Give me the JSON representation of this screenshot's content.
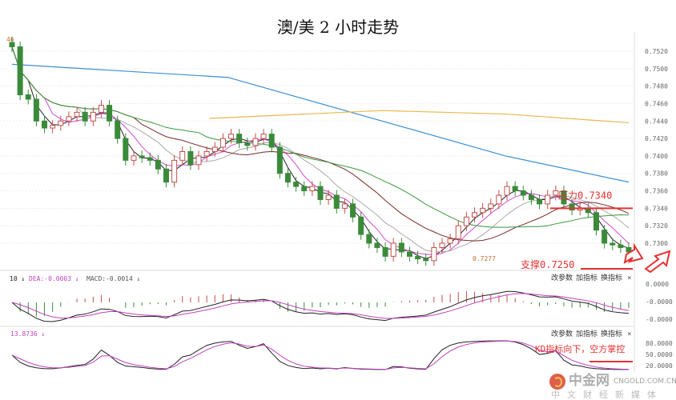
{
  "title": "澳/美 2 小时走势",
  "chart_data": {
    "type": "candlestick",
    "title": "澳/美 2 小时走势",
    "ylim": [
      0.728,
      0.753
    ],
    "y_ticks": [
      "0.7520",
      "0.7500",
      "0.7480",
      "0.7460",
      "0.7440",
      "0.7420",
      "0.7400",
      "0.7380",
      "0.7360",
      "0.7340",
      "0.7320",
      "0.7300"
    ],
    "first_label": "46",
    "low_label": "0.7277",
    "closes": [
      0.7525,
      0.747,
      0.7465,
      0.744,
      0.7432,
      0.7435,
      0.744,
      0.7445,
      0.745,
      0.744,
      0.745,
      0.7458,
      0.744,
      0.742,
      0.7395,
      0.74,
      0.7398,
      0.7395,
      0.7385,
      0.737,
      0.7395,
      0.7405,
      0.739,
      0.74,
      0.7405,
      0.741,
      0.742,
      0.7425,
      0.7415,
      0.7412,
      0.742,
      0.7425,
      0.741,
      0.738,
      0.737,
      0.7365,
      0.736,
      0.7365,
      0.735,
      0.7355,
      0.734,
      0.7345,
      0.733,
      0.731,
      0.73,
      0.7295,
      0.7285,
      0.73,
      0.729,
      0.7285,
      0.7282,
      0.728,
      0.7295,
      0.73,
      0.7305,
      0.732,
      0.733,
      0.7335,
      0.734,
      0.7345,
      0.7355,
      0.7365,
      0.736,
      0.7355,
      0.735,
      0.7345,
      0.7355,
      0.736,
      0.7345,
      0.7338,
      0.734,
      0.7335,
      0.7315,
      0.73,
      0.7298,
      0.7295,
      0.729
    ],
    "ma_long_blue": [
      [
        0,
        0.7505
      ],
      [
        0.35,
        0.749
      ],
      [
        0.6,
        0.744
      ],
      [
        0.8,
        0.74
      ],
      [
        1,
        0.737
      ]
    ],
    "ma_long_yellow": [
      [
        0.32,
        0.7443
      ],
      [
        0.6,
        0.7452
      ],
      [
        0.8,
        0.7448
      ],
      [
        1,
        0.7438
      ]
    ],
    "annotations": {
      "resistance": {
        "label": "压力0.7340",
        "value": 0.734
      },
      "support": {
        "label": "支撑0.7250",
        "value": 0.725
      }
    },
    "macd": {
      "header_a": "10",
      "dea": "DEA:-0.0003",
      "macd": "MACD:-0.0014",
      "ticks": [
        "0.0000",
        "-0.0000",
        "-0.0000"
      ]
    },
    "kd": {
      "header": "13.8736",
      "ticks": [
        "80.0000",
        "50.0000",
        "20.0000"
      ],
      "overlay": "KD指标向下，空方掌控"
    },
    "colors": {
      "up": "#c0504d",
      "down": "#3a8a3a",
      "ma5": "#222222",
      "ma10": "#d24bd2",
      "ma20": "#aaaaaa",
      "ma40": "#7a2a2a",
      "ma60": "#3a9a3a",
      "blue": "#3b8fd0",
      "yellow": "#e8b84a",
      "red": "#e83030"
    }
  },
  "panel_buttons": [
    "改参数",
    "加指标",
    "换指标"
  ],
  "close_label": "×",
  "watermark": {
    "name": "中金网",
    "url": "CNGOLD.COM.CN",
    "slogan": "中文财经新媒体"
  }
}
